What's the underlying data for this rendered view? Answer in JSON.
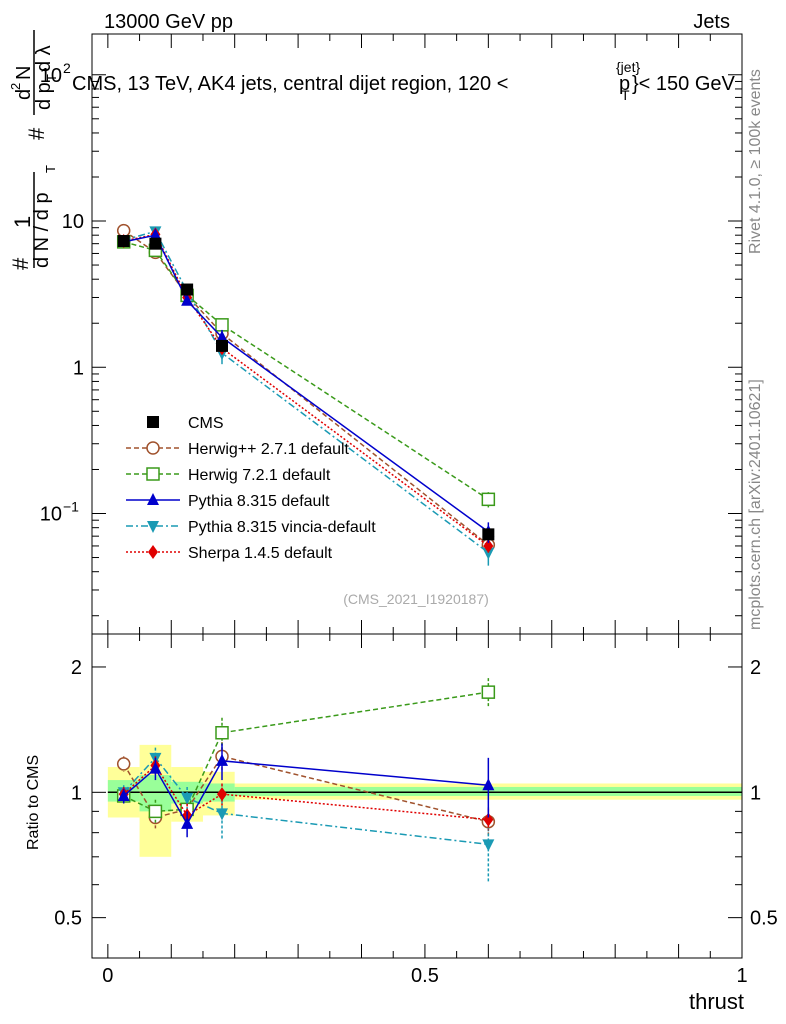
{
  "header": {
    "left": "13000 GeV pp",
    "right": "Jets",
    "plot_title": "CMS, 13 TeV, AK4 jets, central dijet region, 120 <",
    "plot_title_pt": "p",
    "plot_title_sub": "T",
    "plot_title_sup": "{jet}",
    "plot_title_end": "}< 150 GeV"
  },
  "side_text": {
    "rivet": "Rivet 4.1.0, ≥ 100k events",
    "mcplots": "mcplots.cern.ch [arXiv:2401.10621]"
  },
  "watermark": "(CMS_2021_I1920187)",
  "colors": {
    "cms": "#000000",
    "herwigpp": "#a0522d",
    "herwig7": "#3a9a1a",
    "pythia": "#0000cc",
    "vincia": "#1a9ab4",
    "sherpa": "#e00000",
    "band_yellow": "#ffff99",
    "band_green": "#99ff99"
  },
  "chart_data": [
    {
      "type": "line",
      "title": "CMS, 13 TeV, AK4 jets, central dijet region, 120 < p_T^{jet} < 150 GeV",
      "ylabel": "1/dN/dpT · d²N/dpT dλ",
      "ylabel_parts": {
        "one": "1",
        "dN": "d N / d p",
        "T": "T",
        "hash": "#",
        "num": "d",
        "num_sup": "2",
        "N": "N",
        "den": "d p",
        "dlambda": "d λ"
      },
      "xlabel": "",
      "yscale": "log",
      "xlim": [
        -0.025,
        1.0
      ],
      "ylim": [
        0.015,
        190
      ],
      "y_tick_labels": [
        {
          "value": 100,
          "label": "10",
          "sup": "2"
        },
        {
          "value": 10,
          "label": "10",
          "sup": ""
        },
        {
          "value": 1,
          "label": "1",
          "sup": ""
        },
        {
          "value": 0.1,
          "label": "10",
          "sup": "−1"
        }
      ],
      "x": [
        0.025,
        0.075,
        0.125,
        0.18,
        0.6
      ],
      "series": [
        {
          "key": "cms",
          "name": "CMS",
          "values": [
            7.3,
            7.0,
            3.4,
            1.4,
            0.072
          ],
          "errors": [
            0.3,
            0.3,
            0.2,
            0.1,
            0.005
          ]
        },
        {
          "key": "herwigpp",
          "name": "Herwig++ 2.7.1 default",
          "values": [
            8.6,
            6.1,
            3.1,
            1.7,
            0.061
          ],
          "errors": [
            0.3,
            0.3,
            0.2,
            0.1,
            0.005
          ]
        },
        {
          "key": "herwig7",
          "name": "Herwig 7.2.1 default",
          "values": [
            7.2,
            6.3,
            3.1,
            1.95,
            0.125
          ],
          "errors": [
            0.3,
            0.3,
            0.2,
            0.2,
            0.015
          ]
        },
        {
          "key": "pythia",
          "name": "Pythia 8.315 default",
          "values": [
            7.2,
            8.0,
            2.85,
            1.6,
            0.075
          ],
          "errors": [
            0.3,
            0.4,
            0.2,
            0.2,
            0.012
          ]
        },
        {
          "key": "vincia",
          "name": "Pythia 8.315 vincia-default",
          "values": [
            7.4,
            8.5,
            3.3,
            1.25,
            0.054
          ],
          "errors": [
            0.3,
            0.4,
            0.2,
            0.2,
            0.01
          ]
        },
        {
          "key": "sherpa",
          "name": "Sherpa 1.4.5 default",
          "values": [
            7.3,
            8.1,
            3.0,
            1.35,
            0.06
          ],
          "errors": [
            0.3,
            0.4,
            0.2,
            0.1,
            0.006
          ]
        }
      ],
      "legend": "middle-left"
    },
    {
      "type": "line",
      "ylabel": "Ratio to CMS",
      "xlabel": "thrust",
      "yscale": "log",
      "xlim": [
        -0.025,
        1.0
      ],
      "ylim": [
        0.4,
        2.4
      ],
      "y_tick_labels": [
        {
          "value": 2,
          "label": "2"
        },
        {
          "value": 1,
          "label": "1"
        },
        {
          "value": 0.5,
          "label": "0.5"
        }
      ],
      "x_tick_labels": [
        {
          "value": 0,
          "label": "0"
        },
        {
          "value": 0.5,
          "label": "0.5"
        },
        {
          "value": 1,
          "label": "1"
        }
      ],
      "bands": [
        {
          "x0": 0.0,
          "x1": 0.05,
          "yellow": [
            0.87,
            1.15
          ],
          "green": [
            0.95,
            1.07
          ]
        },
        {
          "x0": 0.05,
          "x1": 0.1,
          "yellow": [
            0.7,
            1.3
          ],
          "green": [
            0.9,
            1.1
          ]
        },
        {
          "x0": 0.1,
          "x1": 0.15,
          "yellow": [
            0.85,
            1.15
          ],
          "green": [
            0.94,
            1.06
          ]
        },
        {
          "x0": 0.15,
          "x1": 0.2,
          "yellow": [
            0.88,
            1.12
          ],
          "green": [
            0.95,
            1.05
          ]
        },
        {
          "x0": 0.2,
          "x1": 1.0,
          "yellow": [
            0.96,
            1.05
          ],
          "green": [
            0.98,
            1.03
          ]
        }
      ],
      "series": [
        {
          "key": "herwigpp",
          "values": [
            1.17,
            0.87,
            0.91,
            1.22,
            0.85
          ],
          "errors": [
            0.05,
            0.06,
            0.06,
            0.1,
            0.07
          ]
        },
        {
          "key": "herwig7",
          "values": [
            0.98,
            0.9,
            0.91,
            1.39,
            1.74
          ],
          "errors": [
            0.04,
            0.06,
            0.06,
            0.12,
            0.14
          ]
        },
        {
          "key": "pythia",
          "values": [
            0.98,
            1.14,
            0.84,
            1.19,
            1.04
          ],
          "errors": [
            0.04,
            0.07,
            0.06,
            0.12,
            0.17
          ]
        },
        {
          "key": "vincia",
          "values": [
            1.0,
            1.21,
            0.97,
            0.89,
            0.75
          ],
          "errors": [
            0.04,
            0.07,
            0.06,
            0.12,
            0.14
          ]
        },
        {
          "key": "sherpa",
          "values": [
            0.99,
            1.16,
            0.88,
            0.99,
            0.86
          ],
          "errors": [
            0.04,
            0.06,
            0.06,
            0.06,
            0.05
          ]
        }
      ]
    }
  ]
}
